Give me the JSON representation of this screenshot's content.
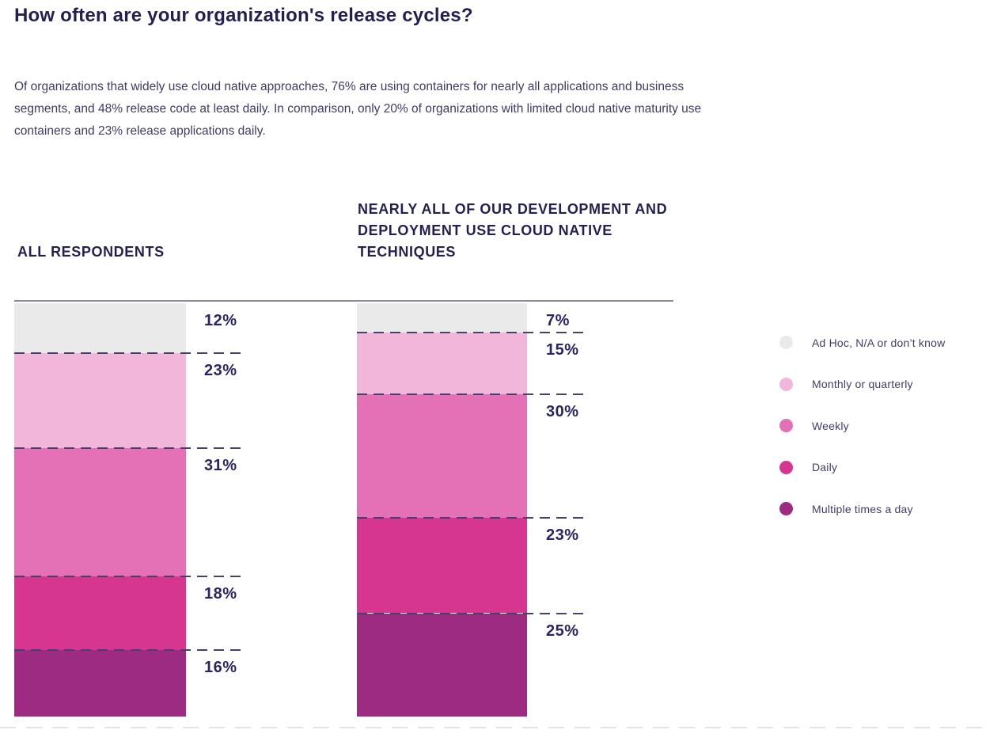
{
  "page": {
    "title": "How often are your organization's release cycles?",
    "description": "Of organizations that widely use cloud native approaches, 76% are using containers for nearly all applications and business segments, and 48% release code at least daily. In comparison, only 20% of organizations with limited cloud native maturity use containers and 23% release applications daily."
  },
  "chart_data": {
    "type": "bar",
    "subtype": "stacked-vertical-percentage",
    "title": "How often are your organization's release cycles?",
    "categories": [
      "Ad Hoc, N/A or don’t know",
      "Monthly or quarterly",
      "Weekly",
      "Daily",
      "Multiple times a day"
    ],
    "colors": [
      "#eaeaea",
      "#f2b6da",
      "#e471b5",
      "#d63690",
      "#9c2b81"
    ],
    "columns": [
      {
        "header": "ALL RESPONDENTS",
        "values": [
          12,
          23,
          31,
          18,
          16
        ]
      },
      {
        "header": "NEARLY ALL OF OUR DEVELOPMENT AND DEPLOYMENT USE CLOUD NATIVE TECHNIQUES",
        "values": [
          7,
          15,
          30,
          23,
          25
        ]
      }
    ],
    "value_suffix": "%",
    "ylim": [
      0,
      100
    ],
    "grid": false,
    "legend_position": "right",
    "legend": [
      {
        "label": "Ad Hoc, N/A or don’t know",
        "color": "#eaeaea"
      },
      {
        "label": "Monthly or quarterly",
        "color": "#f2b6da"
      },
      {
        "label": "Weekly",
        "color": "#e471b5"
      },
      {
        "label": "Daily",
        "color": "#d63690"
      },
      {
        "label": "Multiple times a day",
        "color": "#9c2b81"
      }
    ]
  },
  "style_colors": {
    "heading_text": "#231f50",
    "body_text": "#3e3b63",
    "percent_label_text": "#2a2463",
    "divider_dash": "#45416c",
    "top_rule": "#8d87a8"
  }
}
